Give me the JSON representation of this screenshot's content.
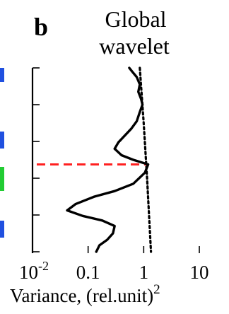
{
  "panel": {
    "letter": "b",
    "title_line1": "Global",
    "title_line2": "wavelet"
  },
  "edge_strip": {
    "colors": [
      "#2050e0",
      "#2050e0",
      "#22cc33",
      "#2050e0"
    ]
  },
  "chart_data": {
    "type": "line",
    "xscale": "log",
    "xlim": [
      0.01,
      10
    ],
    "ylim": [
      0,
      1
    ],
    "grid": false,
    "xticks": [
      {
        "value": 0.01,
        "base": "10",
        "exp": "-2"
      },
      {
        "value": 0.1,
        "label": "0.1"
      },
      {
        "value": 1,
        "label": "1"
      },
      {
        "value": 10,
        "label": "10"
      }
    ],
    "ytick_count": 6,
    "xlabel": {
      "main": "Variance, (rel.unit)",
      "sup": "2"
    },
    "series": [
      {
        "style": "solid",
        "color": "#000000",
        "points": [
          [
            0.55,
            0.0
          ],
          [
            0.62,
            0.02
          ],
          [
            0.75,
            0.05
          ],
          [
            0.85,
            0.09
          ],
          [
            0.8,
            0.13
          ],
          [
            0.9,
            0.17
          ],
          [
            0.95,
            0.2
          ],
          [
            0.85,
            0.24
          ],
          [
            0.75,
            0.29
          ],
          [
            0.6,
            0.33
          ],
          [
            0.45,
            0.37
          ],
          [
            0.35,
            0.405
          ],
          [
            0.3,
            0.44
          ],
          [
            0.4,
            0.475
          ],
          [
            0.65,
            0.5
          ],
          [
            1.2,
            0.525
          ],
          [
            1.05,
            0.57
          ],
          [
            0.65,
            0.63
          ],
          [
            0.3,
            0.67
          ],
          [
            0.13,
            0.7
          ],
          [
            0.06,
            0.74
          ],
          [
            0.042,
            0.775
          ],
          [
            0.08,
            0.805
          ],
          [
            0.18,
            0.83
          ],
          [
            0.3,
            0.86
          ],
          [
            0.28,
            0.9
          ],
          [
            0.22,
            0.935
          ],
          [
            0.16,
            0.965
          ],
          [
            0.14,
            1.0
          ]
        ]
      },
      {
        "style": "dotted",
        "color": "#000000",
        "points": [
          [
            0.85,
            0.0
          ],
          [
            1.0,
            0.3
          ],
          [
            1.15,
            0.6
          ],
          [
            1.35,
            1.0
          ]
        ]
      }
    ],
    "annotations": [
      {
        "type": "hline",
        "y": 0.525,
        "x_from": 0.01,
        "x_to": 1.2,
        "color": "#ff2020",
        "style": "dashed"
      }
    ]
  }
}
